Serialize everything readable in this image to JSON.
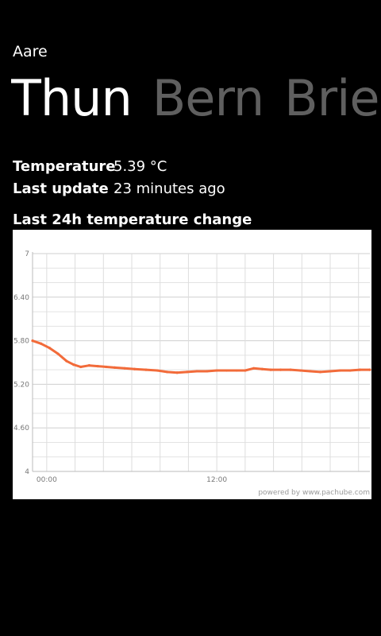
{
  "app": {
    "title": "Aare"
  },
  "pivot": {
    "items": [
      {
        "label": "Thun",
        "active": true
      },
      {
        "label": "Bern",
        "active": false
      },
      {
        "label": "Brienz",
        "active": false
      }
    ]
  },
  "info": {
    "temperature_label": "Temperature",
    "temperature_value": "5.39 °C",
    "update_label": "Last update",
    "update_value": "23 minutes ago"
  },
  "chart_title": "Last 24h temperature change",
  "chart_data": {
    "type": "line",
    "ylim": [
      4,
      7
    ],
    "y_ticks": [
      "7",
      "6.40",
      "5.80",
      "5.20",
      "4.60",
      "4"
    ],
    "y_tick_values": [
      7,
      6.4,
      5.8,
      5.2,
      4.6,
      4
    ],
    "x_ticks": [
      {
        "label": "00:00",
        "hour": 0
      },
      {
        "label": "12:00",
        "hour": 12
      }
    ],
    "xlim_hours": [
      -1,
      22.8
    ],
    "grid": true,
    "line_color": "#f26b3a",
    "x": [
      -1.0,
      -0.4,
      0.2,
      0.8,
      1.4,
      1.9,
      2.4,
      3.0,
      3.6,
      4.2,
      4.8,
      5.5,
      6.2,
      7.0,
      7.8,
      8.5,
      9.2,
      9.9,
      10.6,
      11.3,
      12.0,
      12.7,
      13.4,
      14.0,
      14.6,
      15.2,
      15.8,
      16.5,
      17.2,
      17.9,
      18.6,
      19.3,
      20.0,
      20.7,
      21.4,
      22.1,
      22.8
    ],
    "y": [
      5.8,
      5.76,
      5.7,
      5.62,
      5.52,
      5.47,
      5.44,
      5.46,
      5.45,
      5.44,
      5.43,
      5.42,
      5.41,
      5.4,
      5.39,
      5.37,
      5.36,
      5.37,
      5.38,
      5.38,
      5.39,
      5.39,
      5.39,
      5.39,
      5.42,
      5.41,
      5.4,
      5.4,
      5.4,
      5.39,
      5.38,
      5.37,
      5.38,
      5.39,
      5.39,
      5.4,
      5.4
    ],
    "credit": "powered by www.pachube.com"
  }
}
